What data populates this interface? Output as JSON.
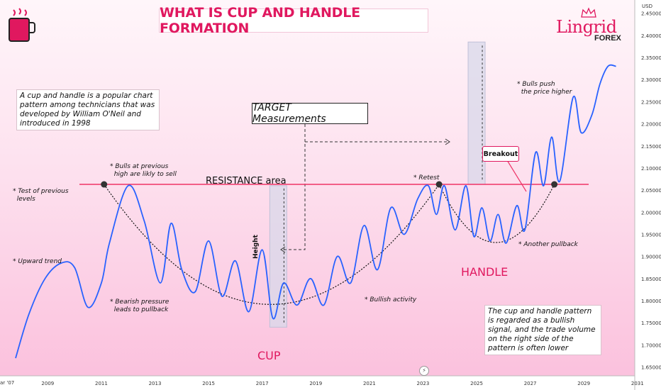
{
  "title": "WHAT IS CUP AND HANDLE FORMATION",
  "logo": {
    "word": "Lingrid",
    "sub": "FOREX"
  },
  "icons": {
    "app_icon": "cup-icon",
    "crown": "crown-icon"
  },
  "colors": {
    "accent": "#e0185f",
    "line": "#2962ff",
    "resistance": "#ee3366"
  },
  "notes": {
    "intro": "A cup and handle is a popular chart pattern among technicians that was developed by William O'Neil and introduced in 1998",
    "signal": "The cup and handle pattern is regarded as a bullish signal, and the trade volume on the right side of the pattern is often lower"
  },
  "boxes": {
    "target": "TARGET Measurements",
    "breakout": "Breakout"
  },
  "labels": {
    "resistance": "RESISTANCE area",
    "cup": "CUP",
    "handle": "HANDLE",
    "height": "Height",
    "test_previous": "* Test of previous\n  levels",
    "upward_trend": "* Upward trend",
    "bulls_sell": "* Bulls at previous\n  high are likly to sell",
    "bearish": "* Bearish pressure\n  leads to pullback",
    "bullish_activity": "* Bullish activity",
    "retest": "* Retest",
    "bulls_push": "* Bulls push\n  the price higher",
    "another_pullback": "* Another pullback"
  },
  "axis": {
    "currency": "USD",
    "cut_label": "ar '07"
  },
  "chart_data": {
    "type": "line",
    "title": "WHAT IS CUP AND HANDLE FORMATION",
    "xlabel": "",
    "ylabel": "",
    "x_ticks": [
      "2009",
      "2011",
      "2013",
      "2015",
      "2017",
      "2019",
      "2021",
      "2023",
      "2025",
      "2027",
      "2029",
      "2031"
    ],
    "y_ticks": [
      "2.45000",
      "2.40000",
      "2.35000",
      "2.30000",
      "2.25000",
      "2.20000",
      "2.15000",
      "2.10000",
      "2.05000",
      "2.00000",
      "1.95000",
      "1.90000",
      "1.85000",
      "1.80000",
      "1.75000",
      "1.70000",
      "1.65000"
    ],
    "xlim": [
      2007.8,
      2030.9
    ],
    "ylim": [
      1.63,
      2.48
    ],
    "resistance_level": 2.063,
    "series": [
      {
        "x": [
          2007.8,
          2008.3,
          2008.9,
          2009.5,
          2010.0,
          2010.5,
          2011.0,
          2011.3,
          2012.0,
          2012.6,
          2013.2,
          2013.6,
          2014.0,
          2014.5,
          2015.0,
          2015.5,
          2016.0,
          2016.5,
          2017.0,
          2017.4,
          2017.8,
          2018.3,
          2018.8,
          2019.3,
          2019.8,
          2020.3,
          2020.8,
          2021.3,
          2021.8,
          2022.3,
          2022.8,
          2023.2,
          2023.5,
          2023.8,
          2024.2,
          2024.6,
          2024.9,
          2025.2,
          2025.5,
          2025.8,
          2026.1,
          2026.5,
          2026.8,
          2027.2,
          2027.5,
          2027.8,
          2028.1,
          2028.6,
          2028.9,
          2029.3,
          2029.6,
          2029.9,
          2030.2
        ],
        "y": [
          1.67,
          1.77,
          1.85,
          1.885,
          1.875,
          1.785,
          1.84,
          1.93,
          2.06,
          1.98,
          1.84,
          1.975,
          1.87,
          1.82,
          1.935,
          1.81,
          1.89,
          1.775,
          1.915,
          1.76,
          1.84,
          1.79,
          1.85,
          1.79,
          1.9,
          1.84,
          1.97,
          1.87,
          2.01,
          1.95,
          2.03,
          2.06,
          1.995,
          2.06,
          1.96,
          2.06,
          1.945,
          2.01,
          1.935,
          1.995,
          1.93,
          2.015,
          1.96,
          2.135,
          2.06,
          2.17,
          2.07,
          2.26,
          2.18,
          2.22,
          2.29,
          2.33,
          2.33
        ]
      }
    ]
  }
}
